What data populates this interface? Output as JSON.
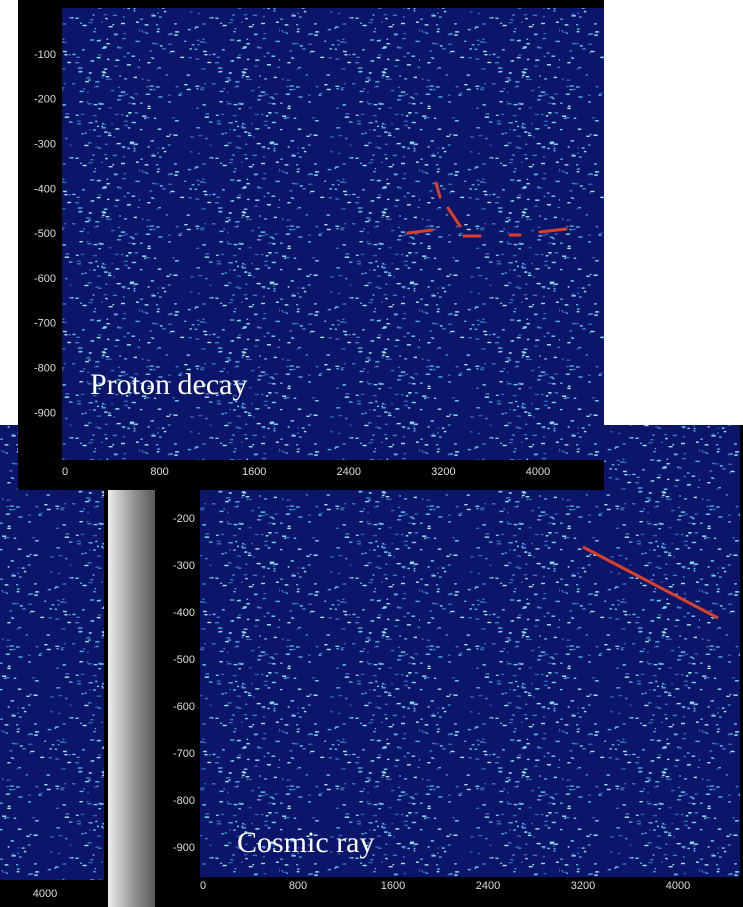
{
  "panels": [
    {
      "xticks": [
        4000
      ]
    },
    {
      "label": "Cosmic ray",
      "yticks": [
        -200,
        -300,
        -400,
        -500,
        -600,
        -700,
        -800,
        -900
      ],
      "xticks": [
        0,
        800,
        1600,
        2400,
        3200,
        4000
      ]
    },
    {
      "label": "Proton decay",
      "yticks": [
        -100,
        -200,
        -300,
        -400,
        -500,
        -600,
        -700,
        -800,
        -900
      ],
      "xticks": [
        0,
        800,
        1600,
        2400,
        3200,
        4000
      ]
    }
  ]
}
